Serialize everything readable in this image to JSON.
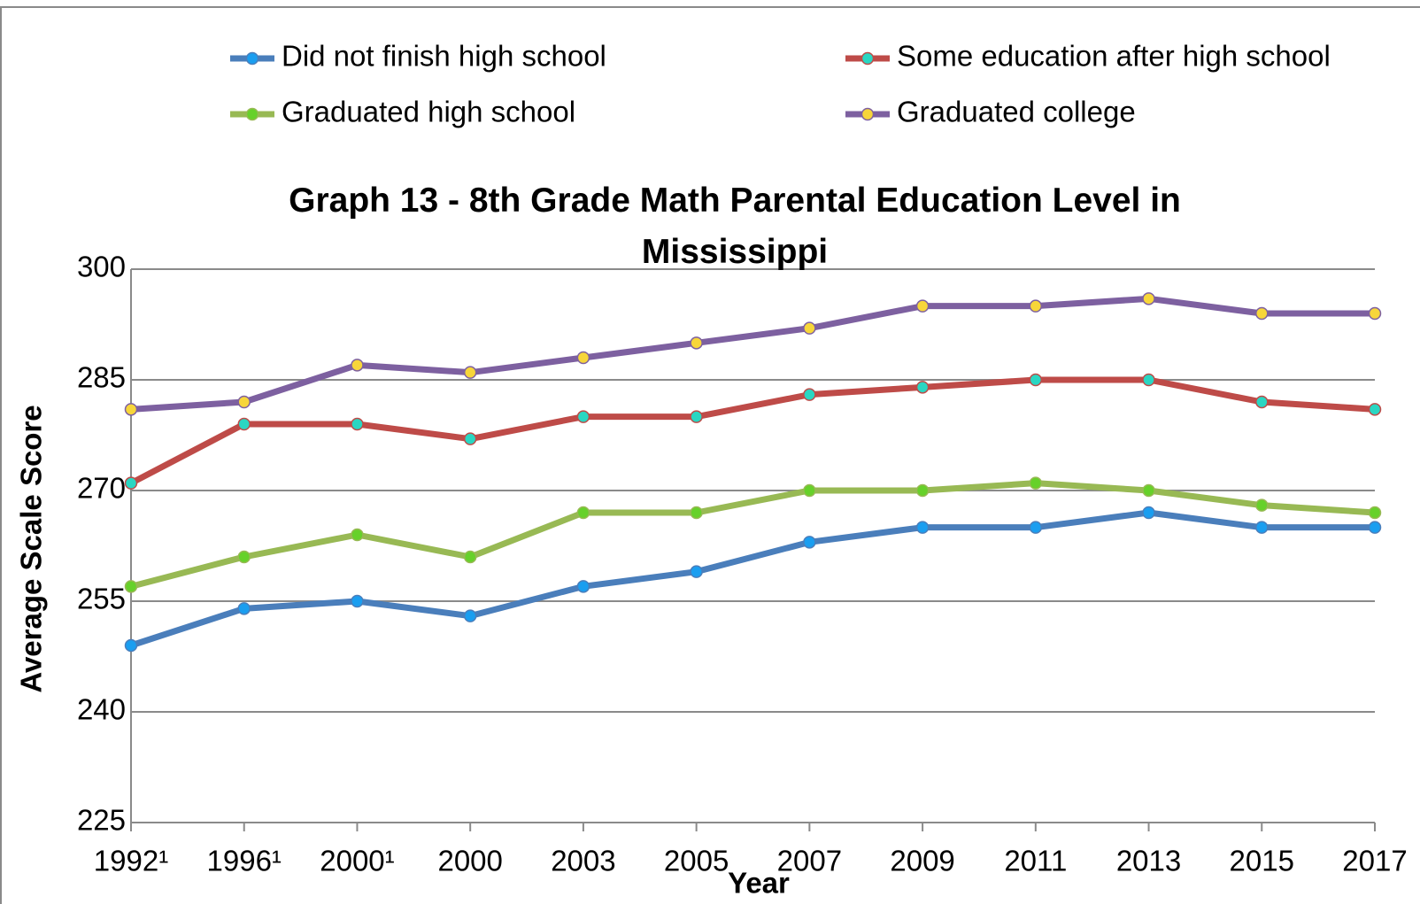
{
  "chart_data": {
    "type": "line",
    "title": "Graph 13 - 8th Grade Math Parental Education Level in Mississippi",
    "xlabel": "Year",
    "ylabel": "Average Scale Score",
    "categories": [
      "1992¹",
      "1996¹",
      "2000¹",
      "2000",
      "2003",
      "2005",
      "2007",
      "2009",
      "2011",
      "2013",
      "2015",
      "2017"
    ],
    "series": [
      {
        "name": "Did not finish high school",
        "color": "#4a7ebb",
        "marker_color": "#1a9ef0",
        "values": [
          249,
          254,
          255,
          253,
          257,
          259,
          263,
          265,
          265,
          267,
          265,
          265
        ]
      },
      {
        "name": "Graduated high school",
        "color": "#98b954",
        "marker_color": "#66d12a",
        "values": [
          257,
          261,
          264,
          261,
          267,
          267,
          270,
          270,
          271,
          270,
          268,
          267
        ]
      },
      {
        "name": "Some education after high school",
        "color": "#be4b48",
        "marker_color": "#2ad6c2",
        "values": [
          271,
          279,
          279,
          277,
          280,
          280,
          283,
          284,
          285,
          285,
          282,
          281
        ]
      },
      {
        "name": "Graduated college",
        "color": "#7d60a0",
        "marker_color": "#f7d63a",
        "values": [
          281,
          282,
          287,
          286,
          288,
          290,
          292,
          295,
          295,
          296,
          294,
          294
        ]
      }
    ],
    "ylim": [
      225,
      300
    ],
    "yticks": [
      225,
      240,
      255,
      270,
      285,
      300
    ],
    "grid": true,
    "legend": "top"
  }
}
